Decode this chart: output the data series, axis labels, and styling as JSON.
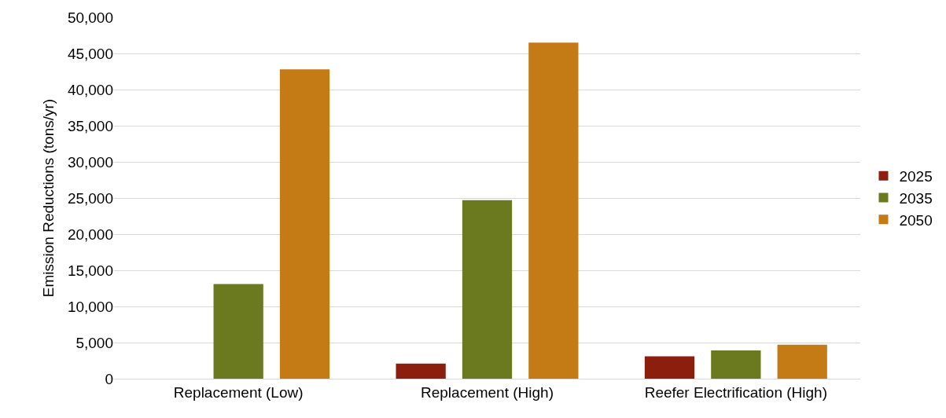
{
  "chart_data": {
    "type": "bar",
    "ylabel": "Emission Reductions (tons/yr)",
    "categories": [
      "Replacement (Low)",
      "Replacement (High)",
      "Reefer Electrification (High)"
    ],
    "series": [
      {
        "name": "2025",
        "color": "#8b1e0c",
        "values": [
          null,
          2100,
          3100
        ]
      },
      {
        "name": "2035",
        "color": "#6b7a1f",
        "values": [
          13100,
          24700,
          3900
        ]
      },
      {
        "name": "2050",
        "color": "#c47a15",
        "values": [
          42800,
          46500,
          4700
        ]
      }
    ],
    "ylim": [
      0,
      50000
    ],
    "yticks": [
      {
        "value": 0,
        "label": "0"
      },
      {
        "value": 5000,
        "label": "5,000"
      },
      {
        "value": 10000,
        "label": "10,000"
      },
      {
        "value": 15000,
        "label": "15,000"
      },
      {
        "value": 20000,
        "label": "20,000"
      },
      {
        "value": 25000,
        "label": "25,000"
      },
      {
        "value": 30000,
        "label": "30,000"
      },
      {
        "value": 35000,
        "label": "35,000"
      },
      {
        "value": 40000,
        "label": "40,000"
      },
      {
        "value": 45000,
        "label": "45,000"
      },
      {
        "value": 50000,
        "label": "50,000"
      }
    ],
    "grid": "y",
    "legend": "right"
  }
}
